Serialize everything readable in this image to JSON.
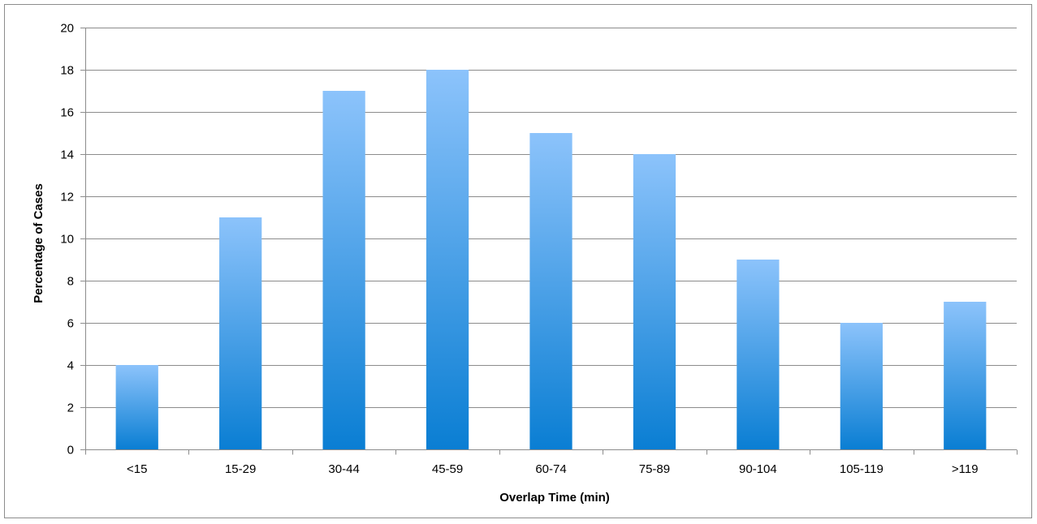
{
  "chart_data": {
    "type": "bar",
    "title": "",
    "xlabel": "Overlap Time (min)",
    "ylabel": "Percentage of Cases",
    "categories": [
      "<15",
      "15-29",
      "30-44",
      "45-59",
      "60-74",
      "75-89",
      "90-104",
      "105-119",
      ">119"
    ],
    "values": [
      4,
      11,
      17,
      18,
      15,
      14,
      9,
      6,
      7
    ],
    "ylim": [
      0,
      20
    ],
    "yticks": [
      0,
      2,
      4,
      6,
      8,
      10,
      12,
      14,
      16,
      18,
      20
    ],
    "grid": true,
    "legend": "none",
    "colors": {
      "bar_top": "#8cc3fb",
      "bar_bottom": "#0a7ed3",
      "grid": "#8c8c8c",
      "axis": "#8c8c8c"
    }
  }
}
